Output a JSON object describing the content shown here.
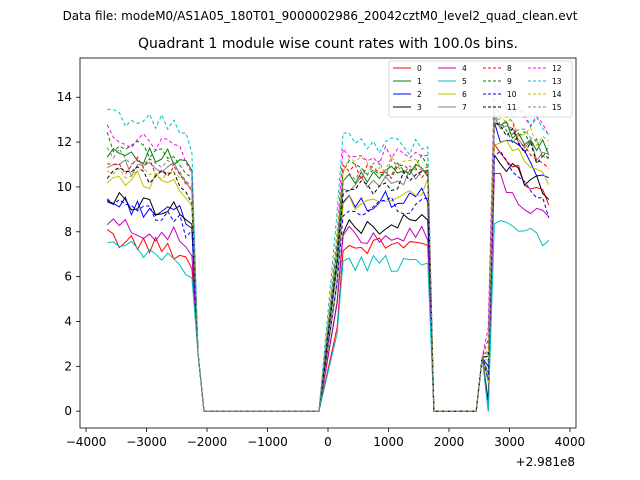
{
  "figure": {
    "suptitle": "Data file: modeM0/AS1A05_180T01_9000002986_20042cztM0_level2_quad_clean.evt",
    "title": "Quadrant 1 module wise count rates with 100.0s bins."
  },
  "chart_data": {
    "type": "line",
    "title": "Quadrant 1 module wise count rates with 100.0s bins.",
    "xlabel": "",
    "ylabel": "",
    "x_offset_label": "+2.981e8",
    "xlim": [
      -4100,
      4100
    ],
    "ylim": [
      -0.75,
      15.75
    ],
    "xticks": [
      -4000,
      -3000,
      -2000,
      -1000,
      0,
      1000,
      2000,
      3000,
      4000
    ],
    "xtick_labels": [
      "−4000",
      "−3000",
      "−2000",
      "−1000",
      "0",
      "1000",
      "2000",
      "3000",
      "4000"
    ],
    "yticks": [
      0,
      2,
      4,
      6,
      8,
      10,
      12,
      14
    ],
    "ytick_labels": [
      "0",
      "2",
      "4",
      "6",
      "8",
      "10",
      "12",
      "14"
    ],
    "grid": false,
    "legend_position": "top-right",
    "legend_columns": 4,
    "segments": [
      {
        "start": -3650,
        "end": -2250,
        "step": 100
      },
      {
        "start": 150,
        "end": 1650,
        "step": 100
      },
      {
        "start": 2650,
        "end": 3650,
        "step": 100
      }
    ],
    "gaps": [
      {
        "start": -2150,
        "end": -2050
      },
      {
        "start": -150,
        "end": -150
      },
      {
        "start": 1750,
        "end": 1750
      },
      {
        "start": 2450,
        "end": 2550
      }
    ],
    "series": [
      {
        "name": "0",
        "color": "#ff0000",
        "style": "solid",
        "seg_levels": [
          7.4,
          7.4,
          10.7
        ],
        "seg_trend": [
          -0.7,
          0.3,
          -2.5
        ]
      },
      {
        "name": "1",
        "color": "#008000",
        "style": "solid",
        "seg_levels": [
          11.4,
          10.5,
          12.4
        ],
        "seg_trend": [
          -0.6,
          0.6,
          -1.8
        ]
      },
      {
        "name": "2",
        "color": "#0000ff",
        "style": "solid",
        "seg_levels": [
          9.0,
          9.4,
          11.5
        ],
        "seg_trend": [
          -0.7,
          0.4,
          -2.5
        ]
      },
      {
        "name": "3",
        "color": "#000000",
        "style": "solid",
        "seg_levels": [
          9.2,
          8.3,
          10.6
        ],
        "seg_trend": [
          -0.5,
          0.5,
          -1.6
        ]
      },
      {
        "name": "4",
        "color": "#bf00bf",
        "style": "solid",
        "seg_levels": [
          8.0,
          7.9,
          9.5
        ],
        "seg_trend": [
          -0.7,
          0.2,
          -2.4
        ]
      },
      {
        "name": "5",
        "color": "#00bfbf",
        "style": "solid",
        "seg_levels": [
          7.0,
          6.6,
          8.0
        ],
        "seg_trend": [
          -0.8,
          0.1,
          -1.2
        ]
      },
      {
        "name": "6",
        "color": "#bfbf00",
        "style": "solid",
        "seg_levels": [
          10.3,
          9.6,
          11.3
        ],
        "seg_trend": [
          -0.3,
          0.8,
          -2.1
        ]
      },
      {
        "name": "7",
        "color": "#808080",
        "style": "solid",
        "seg_levels": [
          10.8,
          10.3,
          12.1
        ],
        "seg_trend": [
          -0.4,
          0.6,
          -1.8
        ]
      },
      {
        "name": "8",
        "color": "#ff0000",
        "style": "dashed",
        "seg_levels": [
          10.9,
          10.7,
          12.3
        ],
        "seg_trend": [
          -0.2,
          0.2,
          -3.1
        ]
      },
      {
        "name": "9",
        "color": "#008000",
        "style": "dashed",
        "seg_levels": [
          11.6,
          10.9,
          12.2
        ],
        "seg_trend": [
          -0.9,
          0.2,
          -1.5
        ]
      },
      {
        "name": "10",
        "color": "#0000ff",
        "style": "dashed",
        "seg_levels": [
          8.8,
          9.1,
          10.5
        ],
        "seg_trend": [
          -0.8,
          0.4,
          -3.1
        ]
      },
      {
        "name": "11",
        "color": "#000000",
        "style": "dashed",
        "seg_levels": [
          10.5,
          10.1,
          12.1
        ],
        "seg_trend": [
          -0.3,
          0.7,
          -2.3
        ]
      },
      {
        "name": "12",
        "color": "#ff00ff",
        "style": "dashed",
        "seg_levels": [
          12.0,
          11.4,
          13.4
        ],
        "seg_trend": [
          -0.7,
          0.1,
          -2.1
        ]
      },
      {
        "name": "13",
        "color": "#00bfbf",
        "style": "dashed",
        "seg_levels": [
          12.9,
          11.9,
          13.3
        ],
        "seg_trend": [
          -0.6,
          -0.3,
          -1.6
        ]
      },
      {
        "name": "14",
        "color": "#bfbf00",
        "style": "dashed",
        "seg_levels": [
          10.5,
          11.0,
          12.6
        ],
        "seg_trend": [
          -0.5,
          0.3,
          -1.4
        ]
      },
      {
        "name": "15",
        "color": "#808080",
        "style": "dashed",
        "seg_levels": [
          11.1,
          10.8,
          12.4
        ],
        "seg_trend": [
          -0.6,
          0.5,
          -1.7
        ]
      }
    ]
  }
}
